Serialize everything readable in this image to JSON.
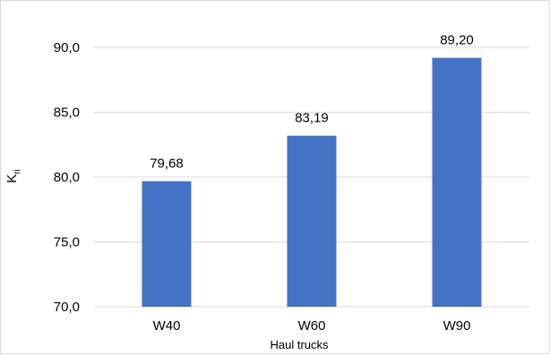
{
  "chart_data": {
    "type": "bar",
    "categories": [
      "W40",
      "W60",
      "W90"
    ],
    "values": [
      79.68,
      83.19,
      89.2
    ],
    "data_labels": [
      "79,68",
      "83,19",
      "89,20"
    ],
    "xlabel": "Haul trucks",
    "ylabel": {
      "main": "K",
      "sub": "ri"
    },
    "ylim": [
      70,
      90
    ],
    "yticks": [
      70,
      75,
      80,
      85,
      90
    ],
    "ytick_labels": [
      "70,0",
      "75,0",
      "80,0",
      "85,0",
      "90,0"
    ],
    "grid": true,
    "legend": "none",
    "colors": {
      "bar": "#4472c4",
      "grid": "#d9d9d9",
      "text": "#000000"
    }
  }
}
